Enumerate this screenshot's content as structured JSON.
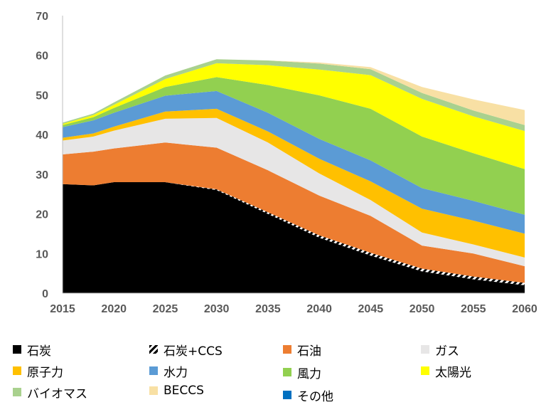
{
  "chart_data": {
    "type": "area",
    "stacked": true,
    "x": [
      2015,
      2018,
      2020,
      2025,
      2030,
      2035,
      2040,
      2045,
      2050,
      2055,
      2060
    ],
    "xticks": [
      "2015",
      "2020",
      "2025",
      "2030",
      "2035",
      "2040",
      "2045",
      "2050",
      "2055",
      "2060"
    ],
    "yticks": [
      "0",
      "10",
      "20",
      "30",
      "40",
      "50",
      "60",
      "70"
    ],
    "ylim": [
      0,
      70
    ],
    "xlim": [
      2015,
      2060
    ],
    "title": "",
    "xlabel": "",
    "ylabel": "",
    "grid": false,
    "legend_position": "bottom",
    "series": [
      {
        "name": "石炭",
        "color": "#000000",
        "values": [
          27.5,
          27.2,
          28,
          28,
          26,
          20,
          14,
          9.5,
          5.5,
          3.5,
          2
        ]
      },
      {
        "name": "石炭+CCS",
        "color": "#000000",
        "pattern": "hatch",
        "values": [
          0,
          0,
          0,
          0,
          0.2,
          0.4,
          0.6,
          0.7,
          0.7,
          0.7,
          0.6
        ]
      },
      {
        "name": "石油",
        "color": "#ED7D31",
        "values": [
          7.5,
          8.5,
          8.5,
          10,
          10.5,
          10.6,
          10,
          9.3,
          5.8,
          5.8,
          4.2
        ]
      },
      {
        "name": "ガス",
        "color": "#E7E6E6",
        "values": [
          3.5,
          3.8,
          4.5,
          6,
          7.5,
          7,
          5.6,
          4,
          3.3,
          2.3,
          2.2
        ]
      },
      {
        "name": "原子力",
        "color": "#FFC000",
        "values": [
          0.7,
          0.8,
          1,
          1.8,
          2.3,
          2.8,
          3.7,
          4.7,
          6,
          6,
          6
        ]
      },
      {
        "name": "水力",
        "color": "#5B9BD5",
        "values": [
          2.7,
          3.3,
          3.5,
          4,
          4.5,
          4.7,
          5,
          5.3,
          5.2,
          5,
          4.8
        ]
      },
      {
        "name": "風力",
        "color": "#92D050",
        "values": [
          0.5,
          0.8,
          1.2,
          2.2,
          3.5,
          7,
          11,
          13,
          13,
          12,
          11.5
        ]
      },
      {
        "name": "太陽光",
        "color": "#FFFF00",
        "values": [
          0.3,
          0.5,
          0.8,
          2,
          3.5,
          5,
          6.5,
          8.5,
          9.5,
          9.3,
          9.6
        ]
      },
      {
        "name": "バイオマス",
        "color": "#A9D18E",
        "values": [
          0.3,
          0.4,
          0.6,
          0.9,
          1,
          1.2,
          1.5,
          1.5,
          1.5,
          1.5,
          1.5
        ]
      },
      {
        "name": "BECCS",
        "color": "#F8E0A4",
        "values": [
          0,
          0,
          0,
          0,
          0,
          0,
          0.3,
          0.5,
          1.5,
          2.8,
          3.8
        ]
      },
      {
        "name": "その他",
        "color": "#0070C0",
        "values": [
          0,
          0,
          0,
          0,
          0,
          0,
          0,
          0,
          0,
          0,
          0
        ]
      }
    ]
  }
}
